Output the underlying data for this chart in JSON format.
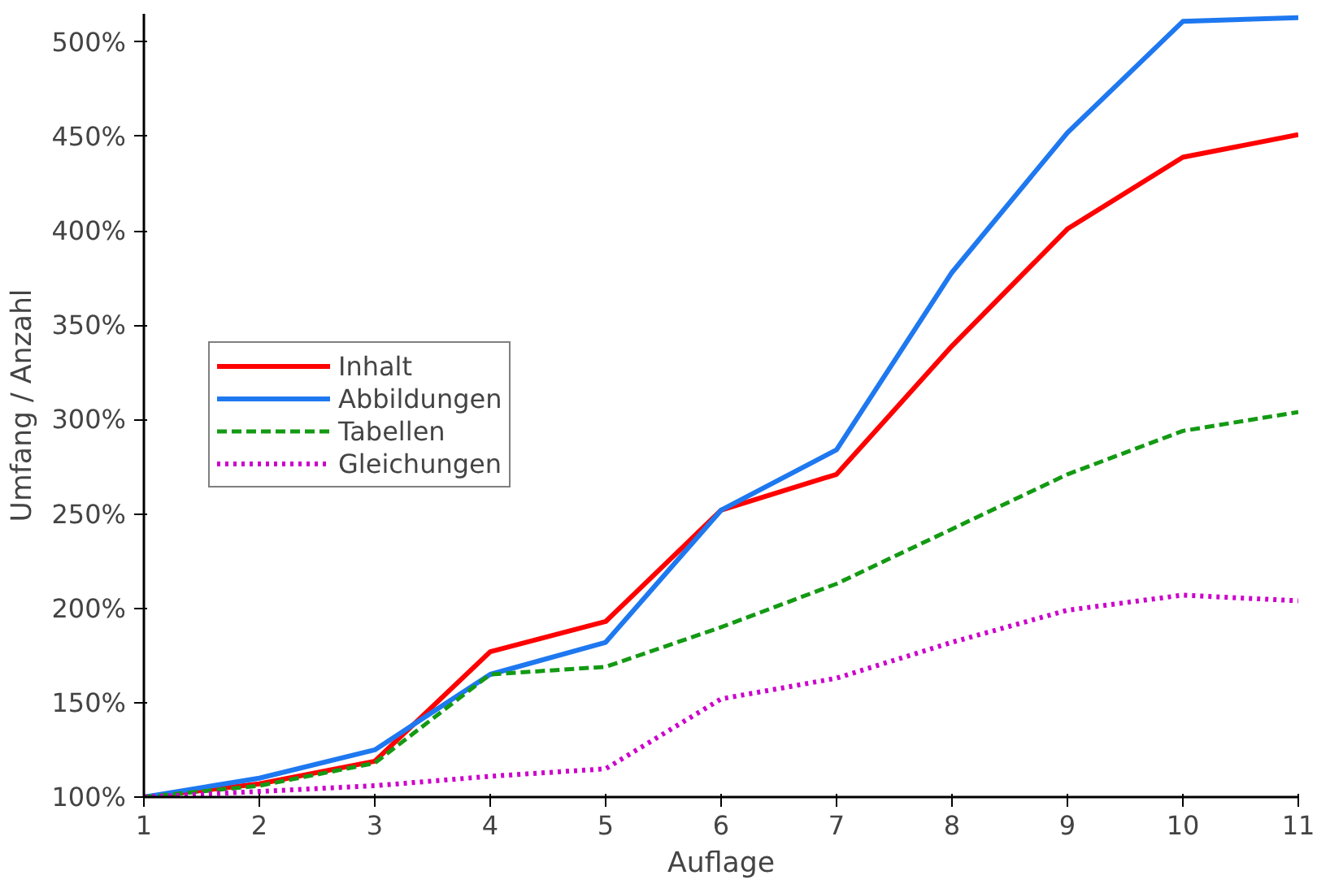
{
  "chart_data": {
    "type": "line",
    "xlabel": "Auflage",
    "ylabel": "Umfang / Anzahl",
    "x": [
      1,
      2,
      3,
      4,
      5,
      6,
      7,
      8,
      9,
      10,
      11
    ],
    "series": [
      {
        "name": "Inhalt",
        "color": "#ff0000",
        "line_style": "solid",
        "values": [
          100,
          107,
          119,
          177,
          193,
          252,
          271,
          339,
          401,
          439,
          451
        ]
      },
      {
        "name": "Abbildungen",
        "color": "#1e78f0",
        "line_style": "solid",
        "values": [
          100,
          110,
          125,
          165,
          182,
          252,
          284,
          378,
          452,
          511,
          513
        ]
      },
      {
        "name": "Tabellen",
        "color": "#139a13",
        "line_style": "dashed",
        "values": [
          100,
          106,
          118,
          165,
          169,
          190,
          213,
          242,
          271,
          294,
          304
        ]
      },
      {
        "name": "Gleichungen",
        "color": "#cc00cc",
        "line_style": "dotted",
        "values": [
          100,
          103,
          106,
          111,
          115,
          152,
          163,
          182,
          199,
          207,
          204
        ]
      }
    ],
    "xlim": [
      1,
      11
    ],
    "xticks": [
      1,
      2,
      3,
      4,
      5,
      6,
      7,
      8,
      9,
      10,
      11
    ],
    "ylim": [
      100,
      515
    ],
    "yticks": [
      {
        "value": 100,
        "label": "100%"
      },
      {
        "value": 150,
        "label": "150%"
      },
      {
        "value": 200,
        "label": "200%"
      },
      {
        "value": 250,
        "label": "250%"
      },
      {
        "value": 300,
        "label": "300%"
      },
      {
        "value": 350,
        "label": "350%"
      },
      {
        "value": 400,
        "label": "400%"
      },
      {
        "value": 450,
        "label": "450%"
      },
      {
        "value": 500,
        "label": "500%"
      }
    ],
    "legend": "left",
    "grid": false,
    "marker": "none"
  }
}
